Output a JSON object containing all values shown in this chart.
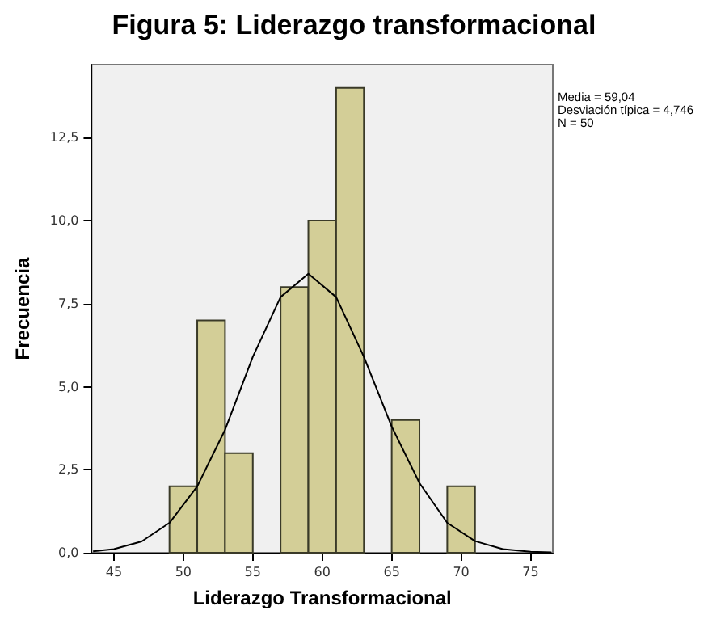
{
  "chart_data": {
    "type": "histogram",
    "title": "Figura 5: Liderazgo transformacional",
    "xlabel": "Liderazgo Transformacional",
    "ylabel": "Frecuencia",
    "bins": [
      49,
      51,
      53,
      55,
      57,
      59,
      61,
      63,
      65,
      67,
      69,
      71
    ],
    "series": [
      {
        "color": "#d3ce97",
        "values": [
          2,
          7,
          3,
          0,
          8,
          10,
          14,
          0,
          4,
          0,
          2
        ]
      },
      {
        "type": "line",
        "color": "#000000",
        "x": [
          43.5,
          45,
          47,
          49,
          51,
          53,
          55,
          57,
          59,
          61,
          63,
          65,
          67,
          69,
          71,
          73,
          75,
          76.5
        ],
        "values": [
          0.04,
          0.11,
          0.34,
          0.9,
          2.0,
          3.7,
          5.9,
          7.7,
          8.4,
          7.7,
          5.9,
          3.8,
          2.1,
          0.9,
          0.35,
          0.11,
          0.03,
          0.01
        ]
      }
    ],
    "xlim": [
      43.4,
      76.6
    ],
    "xticks": [
      45,
      50,
      55,
      60,
      65,
      70,
      75
    ],
    "ylim": [
      0,
      14.7
    ],
    "yticks": [
      {
        "value": 0,
        "label": "0,0"
      },
      {
        "value": 2.5,
        "label": "2,5"
      },
      {
        "value": 5,
        "label": "5,0"
      },
      {
        "value": 7.5,
        "label": "7,5"
      },
      {
        "value": 10,
        "label": "10,0"
      },
      {
        "value": 12.5,
        "label": "12,5"
      }
    ],
    "annotations": [
      "Media = 59,04",
      "Desviación típica = 4,746",
      "N = 50"
    ],
    "grid": false,
    "marker": "none",
    "line_style": "solid"
  }
}
